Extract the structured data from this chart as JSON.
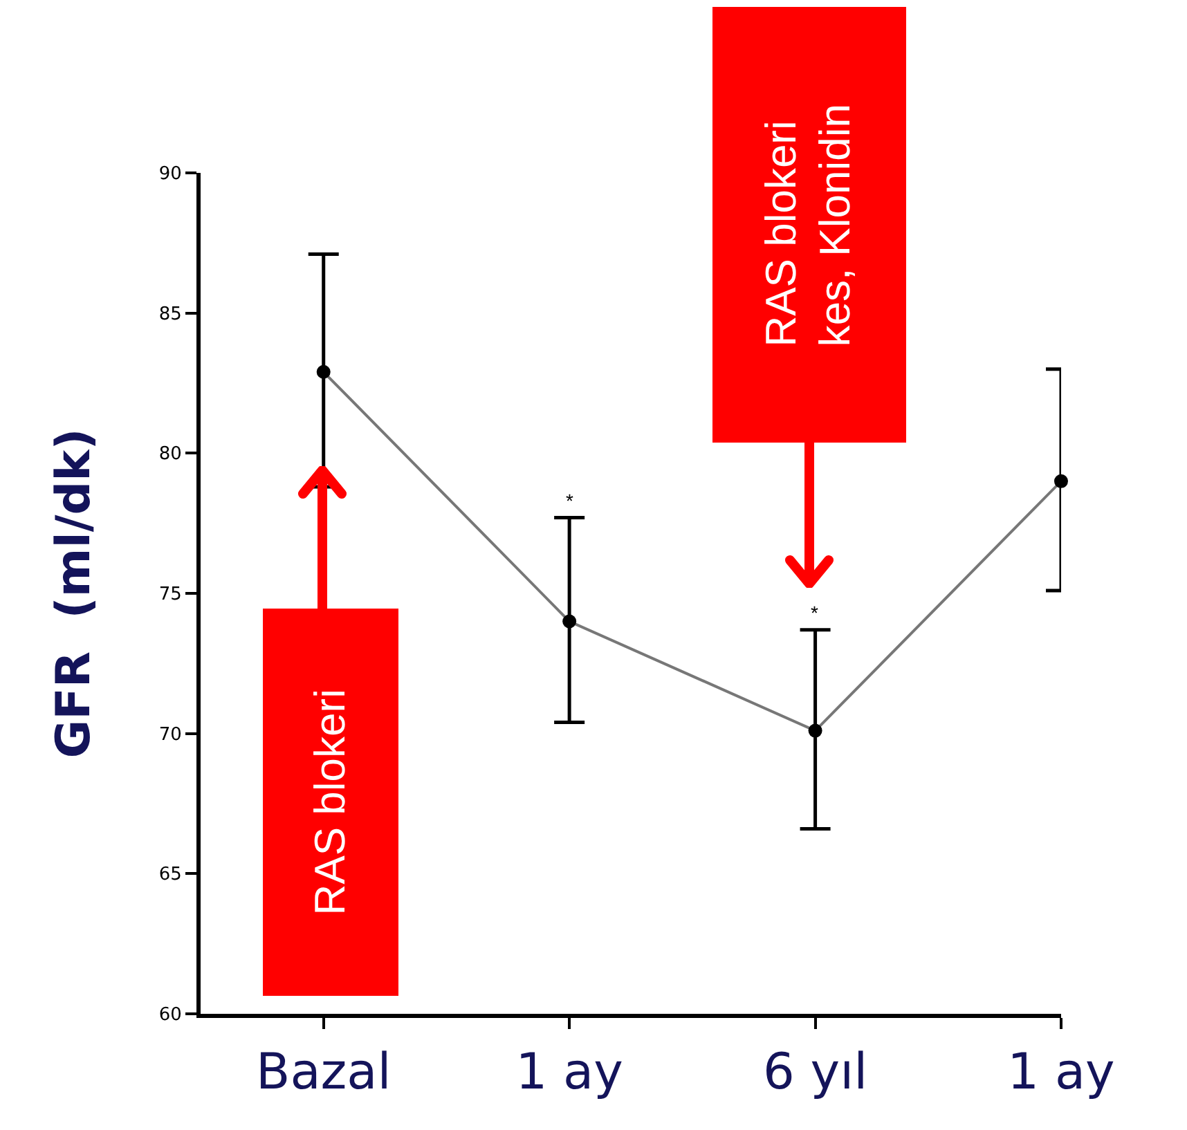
{
  "chart_data": {
    "type": "line",
    "ylabel": "GFR  (ml/dk)",
    "categories": [
      "Bazal",
      "1 ay",
      "6 yıl",
      "1 ay"
    ],
    "values": [
      82.9,
      74.0,
      70.1,
      79.0
    ],
    "errors": [
      [
        78.8,
        87.1
      ],
      [
        70.4,
        77.7
      ],
      [
        66.6,
        73.7
      ],
      [
        75.1,
        83.0
      ]
    ],
    "color": "#777777",
    "marker": "circle",
    "line_style": "solid",
    "grid": false,
    "legend": false,
    "ylim": [
      60,
      90
    ],
    "yticks": [
      60,
      65,
      70,
      75,
      80,
      85,
      90
    ],
    "annotations": [
      "RAS blokeri",
      "RAS blokeri\nkes, Klonidin",
      "*",
      "*"
    ]
  }
}
